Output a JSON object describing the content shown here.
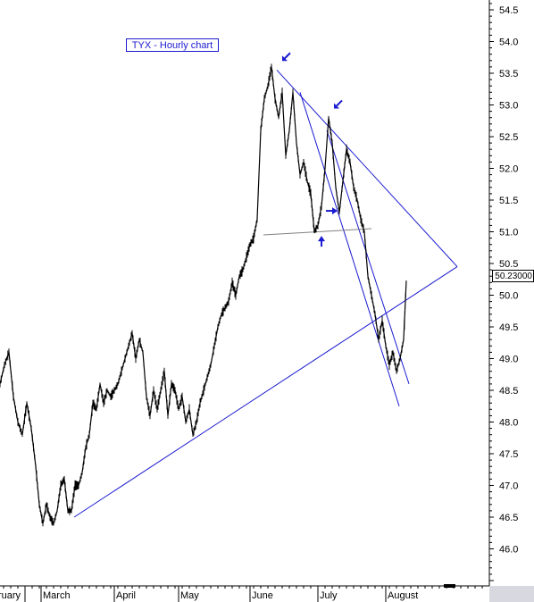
{
  "chart_data": {
    "type": "line",
    "title": "TYX - Hourly chart",
    "last_value_label": "50.23000",
    "ylim": [
      45.5,
      54.7
    ],
    "y_ticks": [
      "54.5",
      "54.0",
      "53.5",
      "53.0",
      "52.5",
      "52.0",
      "51.5",
      "51.0",
      "50.5",
      "50.0",
      "49.5",
      "49.0",
      "48.5",
      "48.0",
      "47.5",
      "47.0",
      "46.5",
      "46.0"
    ],
    "x_ticks": [
      "ruary",
      "March",
      "April",
      "May",
      "June",
      "July",
      "August"
    ],
    "series": [
      {
        "x": [
          0,
          5,
          10,
          15,
          20,
          25,
          30,
          35,
          40,
          44,
          48,
          52,
          56,
          60,
          64,
          68,
          72,
          76,
          80,
          84,
          88,
          92,
          96,
          100,
          104,
          108,
          112,
          116,
          120,
          124,
          128,
          132,
          136,
          140,
          144,
          148,
          152,
          156,
          160,
          164,
          168,
          172,
          176,
          180,
          184,
          188,
          192,
          196,
          200,
          204,
          208,
          212,
          216,
          220,
          224,
          228,
          232,
          236,
          240,
          244,
          248,
          252,
          256,
          260,
          264,
          268,
          272,
          276,
          280,
          284,
          288,
          292,
          296,
          300,
          304,
          308,
          312,
          316,
          320,
          324,
          328,
          332,
          336,
          340,
          344,
          348,
          352,
          356,
          360,
          364,
          368,
          372,
          376,
          380,
          384,
          388,
          392,
          396,
          400,
          404,
          408,
          412,
          416,
          420,
          424,
          428,
          432,
          436,
          440,
          444,
          448,
          452,
          455
        ],
        "values": [
          48.6,
          48.9,
          49.1,
          48.4,
          48.0,
          47.8,
          48.3,
          47.9,
          47.3,
          46.7,
          46.4,
          46.7,
          46.5,
          46.4,
          46.6,
          47.0,
          47.1,
          46.6,
          46.6,
          47.0,
          47.0,
          47.2,
          47.6,
          47.8,
          48.3,
          48.2,
          48.6,
          48.3,
          48.5,
          48.4,
          48.5,
          48.6,
          48.8,
          49.0,
          49.2,
          49.4,
          49.0,
          49.3,
          49.1,
          48.4,
          48.1,
          48.5,
          48.2,
          48.5,
          48.8,
          48.1,
          48.6,
          48.5,
          48.2,
          48.4,
          48.0,
          48.2,
          47.8,
          48.0,
          48.3,
          48.5,
          48.7,
          48.9,
          49.2,
          49.5,
          49.7,
          49.8,
          49.9,
          50.2,
          50.0,
          50.3,
          50.4,
          50.6,
          50.8,
          50.9,
          51.2,
          52.6,
          53.1,
          53.3,
          53.6,
          53.1,
          52.8,
          53.2,
          52.2,
          52.6,
          53.2,
          52.4,
          51.9,
          52.1,
          51.8,
          51.6,
          51.0,
          51.1,
          51.4,
          52.0,
          52.8,
          52.4,
          51.7,
          51.3,
          51.8,
          52.3,
          52.1,
          51.7,
          51.5,
          51.2,
          51.0,
          50.3,
          50.0,
          49.7,
          49.3,
          49.6,
          49.2,
          48.9,
          49.1,
          48.8,
          49.0,
          49.3,
          50.23
        ]
      }
    ],
    "trendlines": [
      {
        "x1": 83,
        "y1": 46.5,
        "x2": 512,
        "y2": 50.45
      },
      {
        "x1": 310,
        "y1": 53.55,
        "x2": 512,
        "y2": 50.45
      },
      {
        "x1": 336,
        "y1": 53.2,
        "x2": 447,
        "y2": 48.25
      },
      {
        "x1": 366,
        "y1": 52.6,
        "x2": 458,
        "y2": 48.6
      },
      {
        "x1": 295,
        "y1": 50.95,
        "x2": 416,
        "y2": 51.05
      }
    ],
    "arrows": [
      {
        "x": 320,
        "y": 53.75,
        "dir": "down-left"
      },
      {
        "x": 378,
        "y": 53.0,
        "dir": "down-left"
      },
      {
        "x": 360,
        "y": 50.85,
        "dir": "up"
      },
      {
        "x": 372,
        "y": 51.33,
        "dir": "right"
      }
    ]
  }
}
